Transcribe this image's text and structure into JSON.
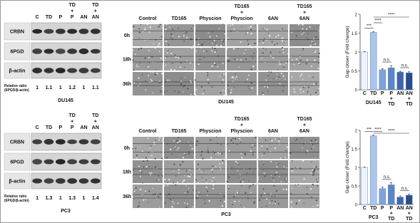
{
  "blots": [
    {
      "lanes": [
        "C",
        "TD",
        "P",
        "TD + P",
        "AN",
        "TD + AN"
      ],
      "proteins": [
        "CRBN",
        "6PGD",
        "β-actin"
      ],
      "ratio_label": "Relative ratio",
      "ratio_sublabel": "(6PGD/β-actin)",
      "ratios": [
        1,
        1.1,
        1,
        1.2,
        1,
        1.1
      ],
      "cell_line": "DU145"
    },
    {
      "lanes": [
        "C",
        "TD",
        "P",
        "TD + P",
        "AN",
        "TD + AN"
      ],
      "proteins": [
        "CRBN",
        "6PGD",
        "β-actin"
      ],
      "ratio_label": "Relative ratio",
      "ratio_sublabel": "(6PGD/β-actin)",
      "ratios": [
        1,
        1.3,
        1,
        1.3,
        1,
        1.4
      ],
      "cell_line": "PC3"
    }
  ],
  "scratch": [
    {
      "conditions": [
        "Control",
        "TD165",
        "Physcion",
        "TD165 + Physcion",
        "6AN",
        "TD165 + 6AN"
      ],
      "times": [
        "0h",
        "18h",
        "36h"
      ],
      "cell_line": "DU145"
    },
    {
      "conditions": [
        "Control",
        "TD165",
        "Physcion",
        "TD165 + Physcion",
        "6AN",
        "TD165 + 6AN"
      ],
      "times": [
        "0h",
        "18h",
        "36h"
      ],
      "cell_line": "PC3"
    }
  ],
  "chart_data": [
    {
      "type": "bar",
      "ylabel": "Gap closer (Fold change)",
      "xlabel": "DU145",
      "categories": [
        "C",
        "TD",
        "P",
        "P + TD",
        "AN",
        "AN + TD"
      ],
      "values": [
        1.0,
        1.52,
        0.53,
        0.58,
        0.47,
        0.45
      ],
      "errors": [
        0.01,
        0.02,
        0.03,
        0.06,
        0.02,
        0.03
      ],
      "colors": [
        "#eef3fb",
        "#aac5ec",
        "#7fa3d8",
        "#5b86c9",
        "#3e66ad",
        "#2b4c8c"
      ],
      "ylim": [
        0,
        2
      ],
      "yticks": [
        0,
        0.5,
        1,
        1.5,
        2
      ],
      "significance": [
        {
          "label": "***",
          "from": 0,
          "to": 1
        },
        {
          "label": "****",
          "from": 1,
          "to": 2
        },
        {
          "label": "n.s.",
          "from": 2,
          "to": 3
        },
        {
          "label": "****",
          "from": 1,
          "to": 5
        },
        {
          "label": "n.s.",
          "from": 4,
          "to": 5
        }
      ]
    },
    {
      "type": "bar",
      "ylabel": "Gap closer (Fold change)",
      "xlabel": "PC3",
      "categories": [
        "C",
        "TD",
        "P",
        "P + TD",
        "AN",
        "AN + TD"
      ],
      "values": [
        1.0,
        1.85,
        0.43,
        0.53,
        0.2,
        0.25
      ],
      "errors": [
        0.01,
        0.02,
        0.04,
        0.06,
        0.03,
        0.03
      ],
      "colors": [
        "#eef3fb",
        "#aac5ec",
        "#7fa3d8",
        "#5b86c9",
        "#3e66ad",
        "#2b4c8c"
      ],
      "ylim": [
        0,
        2
      ],
      "yticks": [
        0,
        0.5,
        1,
        1.5,
        2
      ],
      "significance": [
        {
          "label": "***",
          "from": 0,
          "to": 1
        },
        {
          "label": "****",
          "from": 1,
          "to": 2
        },
        {
          "label": "n.s.",
          "from": 2,
          "to": 3
        },
        {
          "label": "****",
          "from": 1,
          "to": 5
        },
        {
          "label": "n.s.",
          "from": 4,
          "to": 5
        }
      ]
    }
  ]
}
